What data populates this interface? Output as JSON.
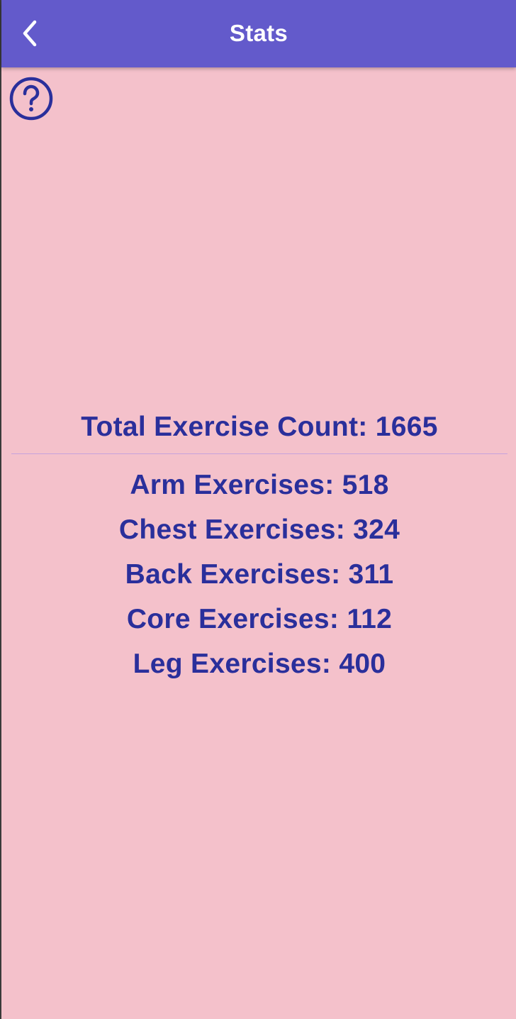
{
  "theme": {
    "background": "#f4c1cb",
    "app_bar": "#635acb",
    "text_primary": "#2a2f9b",
    "divider": "#c6a2dd"
  },
  "app_bar": {
    "title": "Stats",
    "back_icon": "chevron-left-icon"
  },
  "help": {
    "icon": "help-circle-icon"
  },
  "stats": {
    "total_label": "Total Exercise Count: 1665",
    "categories": [
      {
        "label": "Arm Exercises: 518"
      },
      {
        "label": "Chest Exercises: 324"
      },
      {
        "label": "Back Exercises: 311"
      },
      {
        "label": "Core Exercises: 112"
      },
      {
        "label": "Leg Exercises: 400"
      }
    ]
  }
}
